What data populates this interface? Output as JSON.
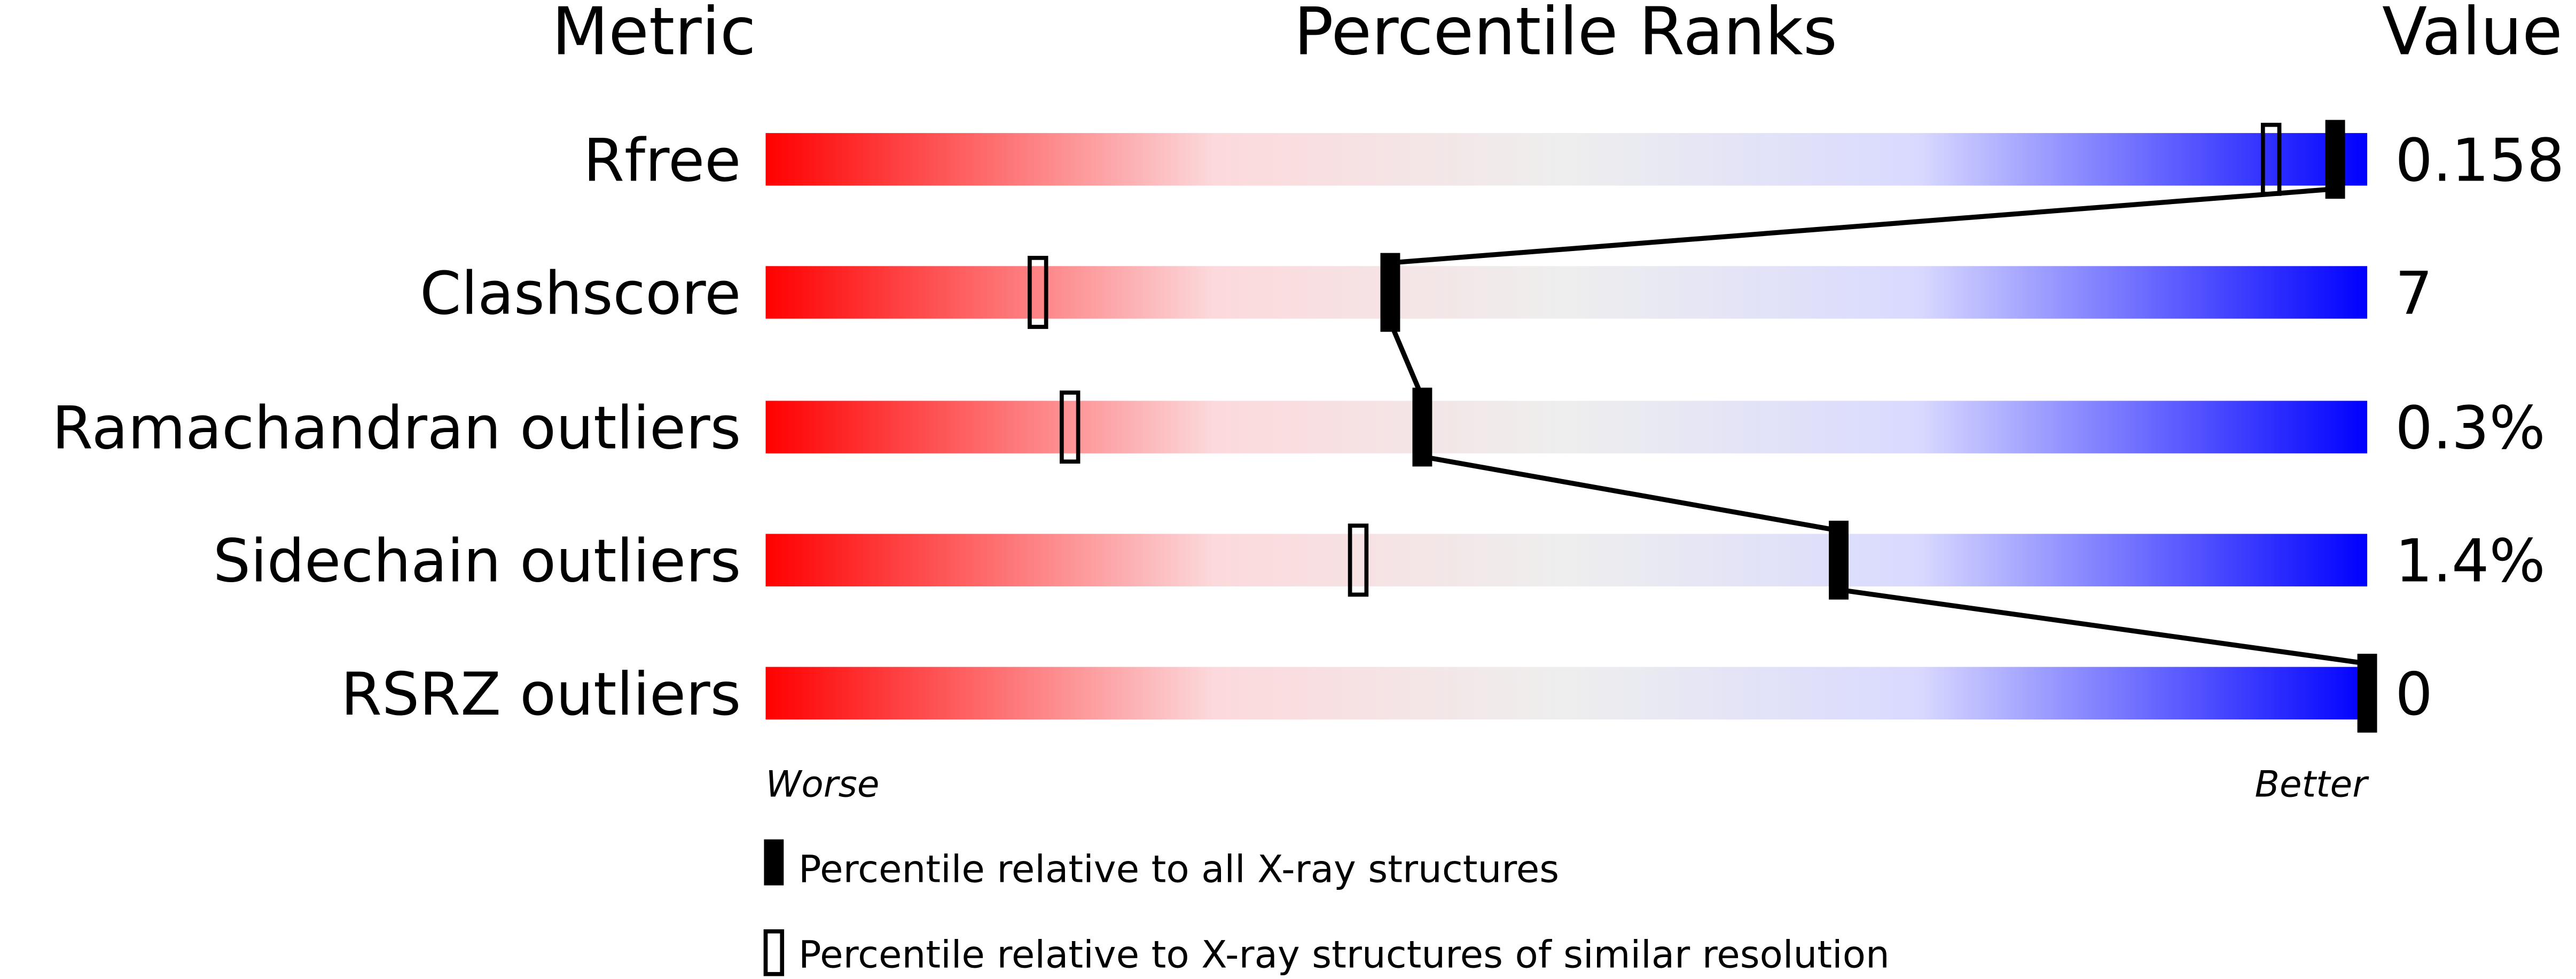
{
  "chart_data": {
    "type": "percentile-slider",
    "headers": {
      "metric": "Metric",
      "ranks": "Percentile Ranks",
      "value": "Value"
    },
    "axis": {
      "left": "Worse",
      "right": "Better",
      "range": [
        0,
        100
      ]
    },
    "gradient_colors": [
      "#ff0000",
      "#fcd9dc",
      "#eeeeee",
      "#d9d9ff",
      "#0000ff"
    ],
    "metrics": [
      {
        "name": "Rfree",
        "value": "0.158",
        "percentile_all": 98,
        "percentile_similar": 94
      },
      {
        "name": "Clashscore",
        "value": "7",
        "percentile_all": 39,
        "percentile_similar": 17
      },
      {
        "name": "Ramachandran outliers",
        "value": "0.3%",
        "percentile_all": 41,
        "percentile_similar": 19
      },
      {
        "name": "Sidechain outliers",
        "value": "1.4%",
        "percentile_all": 67,
        "percentile_similar": 37
      },
      {
        "name": "RSRZ outliers",
        "value": "0",
        "percentile_all": 100,
        "percentile_similar": null
      }
    ],
    "legend": {
      "all": "Percentile relative to all X-ray structures",
      "similar": "Percentile relative to X-ray structures of similar resolution"
    }
  }
}
